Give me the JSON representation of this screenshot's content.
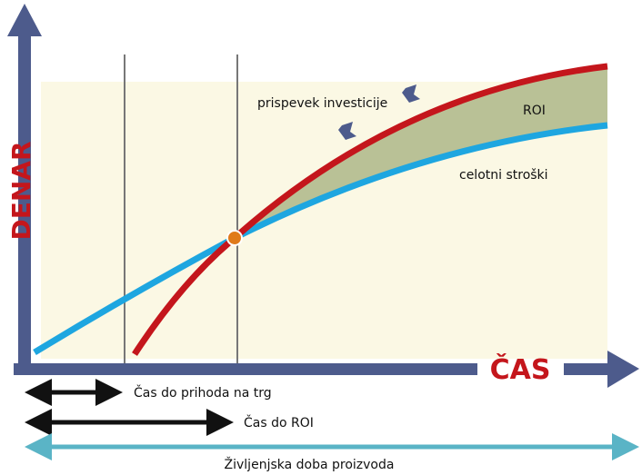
{
  "axes": {
    "y_label": "DENAR",
    "x_label": "ČAS"
  },
  "curves": {
    "revenue_label": "prispevek investicije",
    "area_label": "ROI",
    "cost_label": "celotni stroški"
  },
  "spans": [
    {
      "label": "Čas do prihoda na trg"
    },
    {
      "label": "Čas do ROI"
    },
    {
      "label": "Življenjska doba proizvoda"
    }
  ]
}
